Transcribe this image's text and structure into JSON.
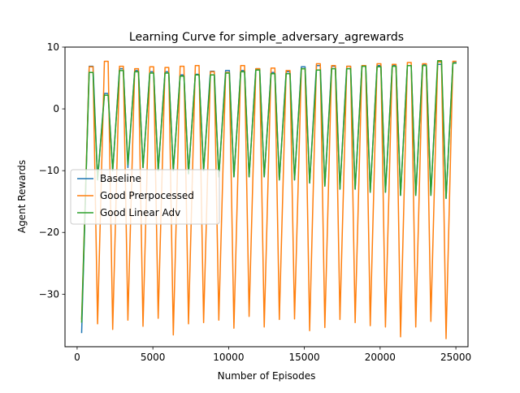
{
  "chart_data": {
    "type": "line",
    "title": "Learning Curve for simple_adversary_agrewards",
    "xlabel": "Number of Episodes",
    "ylabel": "Agent Rewards",
    "xlim": [
      -800,
      25800
    ],
    "ylim": [
      -38.5,
      10
    ],
    "xticks": [
      0,
      5000,
      10000,
      15000,
      20000,
      25000
    ],
    "xtick_labels": [
      "0",
      "5000",
      "10000",
      "15000",
      "20000",
      "25000"
    ],
    "yticks": [
      -30,
      -20,
      -10,
      0,
      10
    ],
    "ytick_labels": [
      "−30",
      "−20",
      "−10",
      "0",
      "10"
    ],
    "grid": false,
    "legend_position": "center-left",
    "x": [
      300,
      800,
      1050,
      1350,
      1800,
      2050,
      2350,
      2800,
      3050,
      3350,
      3800,
      4050,
      4350,
      4800,
      5050,
      5350,
      5800,
      6050,
      6350,
      6800,
      7050,
      7350,
      7800,
      8050,
      8350,
      8800,
      9050,
      9350,
      9800,
      10050,
      10350,
      10800,
      11050,
      11350,
      11800,
      12050,
      12350,
      12800,
      13050,
      13350,
      13800,
      14050,
      14350,
      14800,
      15050,
      15350,
      15800,
      16050,
      16350,
      16800,
      17050,
      17350,
      17800,
      18050,
      18350,
      18800,
      19050,
      19350,
      19800,
      20050,
      20350,
      20800,
      21050,
      21350,
      21800,
      22050,
      22350,
      22800,
      23050,
      23350,
      23800,
      24050,
      24350,
      24800,
      25000
    ],
    "series": [
      {
        "name": "Baseline",
        "color": "#1f77b4",
        "values": [
          -36.2,
          6.9,
          6.9,
          -11.5,
          2.5,
          2.5,
          -10.0,
          6.5,
          6.5,
          -9.5,
          6.2,
          6.2,
          -9.5,
          6.0,
          6.0,
          -10.0,
          6.0,
          6.0,
          -10.0,
          5.5,
          5.5,
          -10.5,
          5.6,
          5.6,
          -10.0,
          6.1,
          6.1,
          -11.0,
          6.2,
          6.2,
          -11.0,
          6.2,
          6.2,
          -11.0,
          6.5,
          6.5,
          -11.0,
          5.9,
          5.9,
          -11.5,
          6.0,
          6.0,
          -11.5,
          6.8,
          6.8,
          -12.0,
          7.0,
          7.0,
          -12.5,
          6.9,
          6.9,
          -13.0,
          6.9,
          6.9,
          -13.0,
          7.0,
          7.0,
          -13.5,
          7.0,
          7.0,
          -13.5,
          7.0,
          7.0,
          -14.0,
          7.0,
          7.0,
          -14.0,
          7.2,
          7.2,
          -14.0,
          7.2,
          7.2,
          -14.5,
          7.5,
          7.5
        ]
      },
      {
        "name": "Good Prerpocessed",
        "color": "#ff7f0e",
        "values": [
          -34.0,
          6.8,
          6.8,
          -34.8,
          7.7,
          7.7,
          -35.7,
          6.9,
          6.9,
          -34.2,
          6.5,
          6.5,
          -35.2,
          6.8,
          6.8,
          -33.9,
          6.7,
          6.7,
          -36.6,
          6.9,
          6.9,
          -34.8,
          7.0,
          7.0,
          -34.6,
          6.0,
          6.0,
          -34.2,
          5.9,
          5.9,
          -35.5,
          7.0,
          7.0,
          -33.6,
          6.5,
          6.5,
          -35.3,
          6.6,
          6.6,
          -34.1,
          6.2,
          6.2,
          -34.0,
          6.5,
          6.5,
          -35.9,
          7.3,
          7.3,
          -35.4,
          7.0,
          7.0,
          -34.1,
          6.9,
          6.9,
          -34.6,
          7.0,
          7.0,
          -35.1,
          7.3,
          7.3,
          -35.3,
          7.2,
          7.2,
          -36.9,
          7.5,
          7.5,
          -35.3,
          7.3,
          7.3,
          -34.4,
          7.6,
          7.6,
          -37.2,
          7.7,
          7.7
        ]
      },
      {
        "name": "Good Linear Adv",
        "color": "#2ca02c",
        "values": [
          -34.5,
          5.9,
          5.9,
          -11.5,
          2.2,
          2.2,
          -10.0,
          6.2,
          6.2,
          -9.0,
          6.0,
          6.0,
          -9.5,
          5.8,
          5.8,
          -10.0,
          5.8,
          5.8,
          -10.0,
          5.3,
          5.3,
          -10.5,
          5.5,
          5.5,
          -10.0,
          5.5,
          5.5,
          -11.0,
          5.8,
          5.8,
          -11.0,
          6.0,
          6.0,
          -11.0,
          6.3,
          6.3,
          -11.0,
          5.7,
          5.7,
          -11.5,
          5.7,
          5.7,
          -11.5,
          6.5,
          6.5,
          -12.0,
          6.3,
          6.3,
          -12.5,
          6.5,
          6.5,
          -13.0,
          6.5,
          6.5,
          -13.0,
          6.9,
          6.9,
          -13.5,
          6.8,
          6.8,
          -13.5,
          6.9,
          6.9,
          -14.0,
          7.0,
          7.0,
          -14.0,
          7.0,
          7.0,
          -14.0,
          7.8,
          7.8,
          -14.5,
          7.4,
          7.4
        ]
      }
    ]
  }
}
